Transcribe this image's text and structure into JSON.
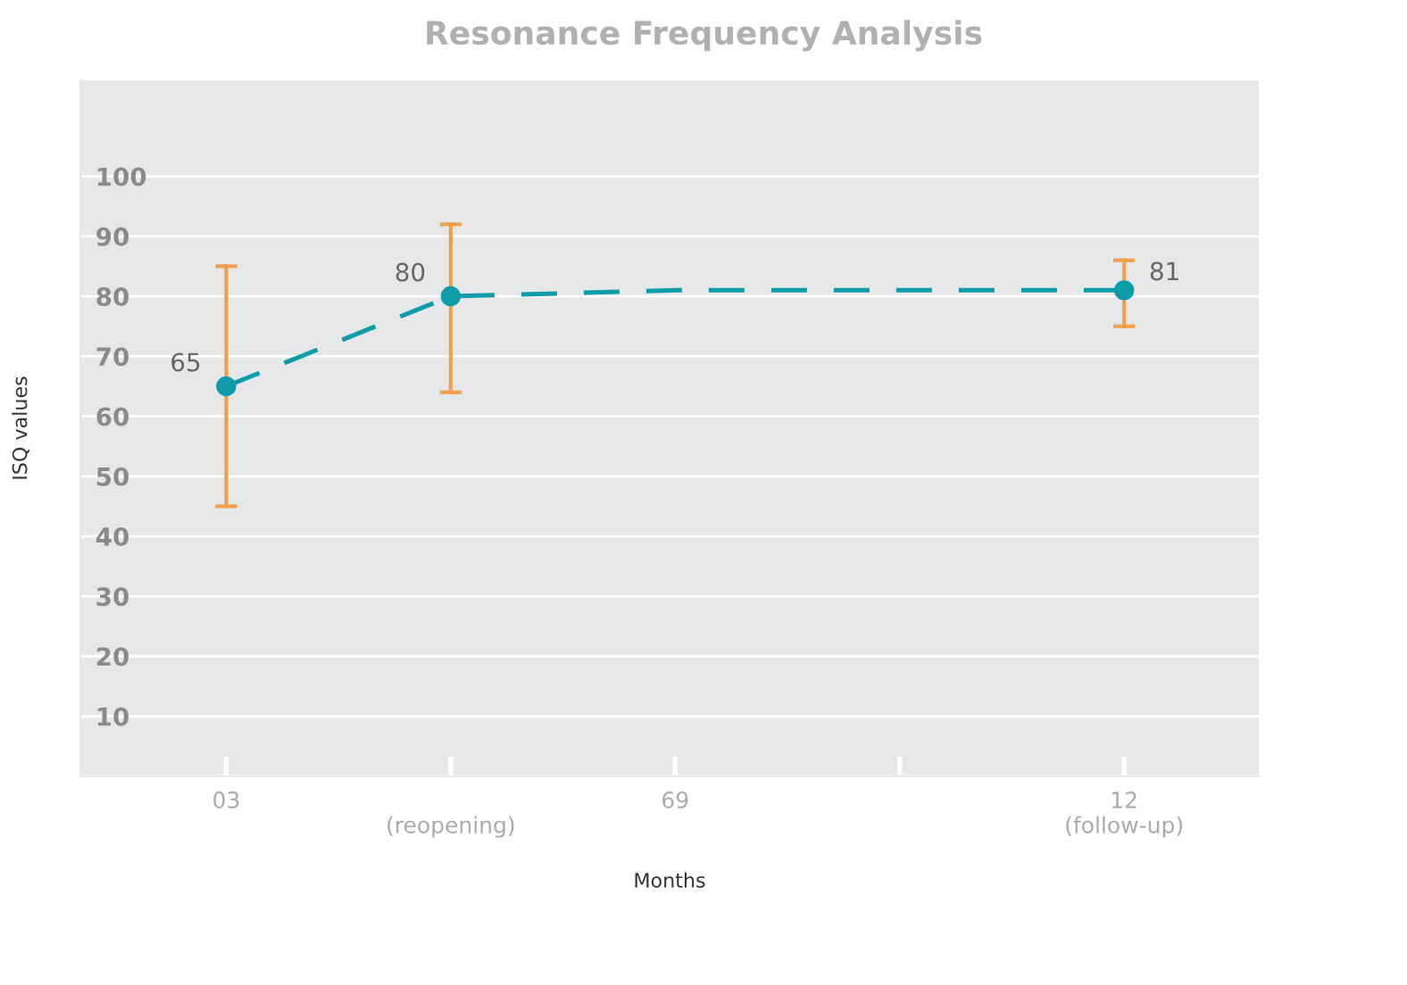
{
  "chart_data": {
    "type": "line",
    "title": "Resonance Frequency Analysis",
    "xlabel": "Months",
    "ylabel": "ISQ values",
    "categories": [
      "03",
      "\n(reopening)",
      "69",
      null,
      "12\n(follow-up)"
    ],
    "series": [
      {
        "color": "#0e9cab",
        "values": [
          65,
          80,
          81,
          81,
          81
        ],
        "line_style": "dashed",
        "marker": "none"
      },
      {
        "type": "scatter",
        "color": "#0e9cab",
        "values": [
          65,
          80,
          null,
          null,
          81
        ],
        "marker": "circle",
        "errors": [
          [
            45,
            85
          ],
          [
            64,
            92
          ],
          null,
          null,
          [
            75,
            86
          ]
        ],
        "value_labels": [
          "65",
          "80",
          null,
          null,
          "81"
        ]
      }
    ],
    "ylim": [
      0,
      116
    ],
    "yticks": [
      {
        "value": 0,
        "label": null
      },
      10,
      20,
      30,
      40,
      50,
      60,
      70,
      80,
      90,
      100
    ],
    "grid": "y",
    "legend": false
  }
}
